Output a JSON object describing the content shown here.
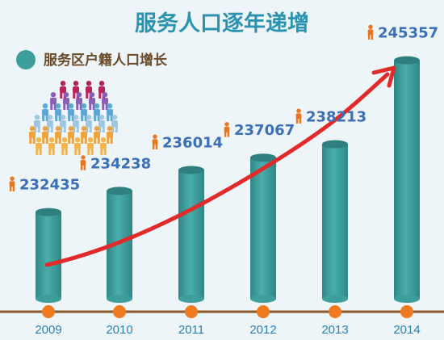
{
  "colors": {
    "background": "#eef5f8",
    "title": "#2a93b0",
    "legend_text": "#6b4a2a",
    "bar": "#3e9e9c",
    "bar_top": "#2f7f7e",
    "value_text": "#3b6fb6",
    "person_icon": "#e87722",
    "axis": "#8a5a2b",
    "marker": "#f07a20",
    "trend_arrow": "#e12a2a",
    "year_text": "#2a7fb0"
  },
  "header": {
    "title": "服务人口逐年递增"
  },
  "legend": {
    "label": "服务区户籍人口增长",
    "icon": "teal-circle"
  },
  "icons": {
    "value_icon": "person-icon",
    "illustration": "crowd-of-people-icon"
  },
  "chart_data": {
    "type": "bar",
    "title": "服务人口逐年递增",
    "xlabel": "",
    "ylabel": "",
    "categories": [
      "2009",
      "2010",
      "2011",
      "2012",
      "2013",
      "2014"
    ],
    "values": [
      232435,
      234238,
      236014,
      237067,
      238213,
      245357
    ],
    "series": [
      {
        "name": "服务区户籍人口增长",
        "values": [
          232435,
          234238,
          236014,
          237067,
          238213,
          245357
        ]
      }
    ],
    "data_labels": [
      "232435",
      "234238",
      "236014",
      "237067",
      "238213",
      "245357"
    ],
    "ylim": [
      230000,
      246500
    ],
    "grid": false,
    "legend": "top-left",
    "trend_arrow": true
  }
}
